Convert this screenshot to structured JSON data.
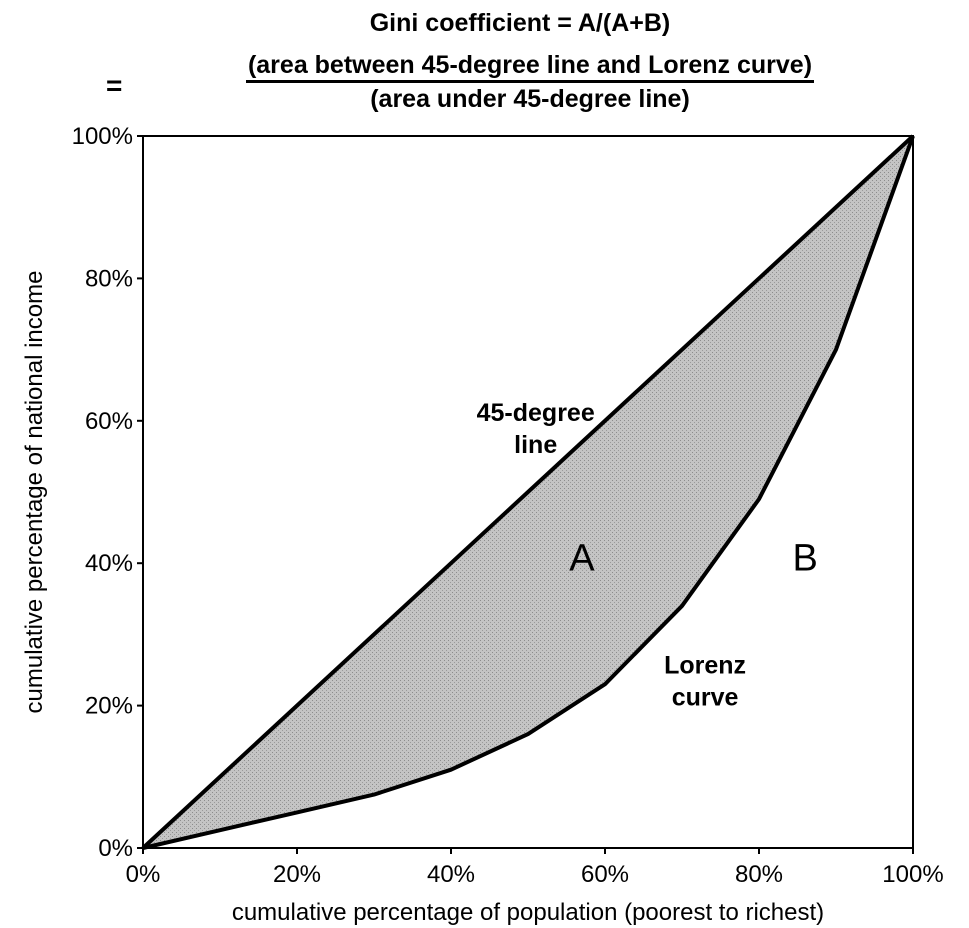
{
  "chart_data": {
    "type": "line",
    "title": "Gini coefficient = A/(A+B)",
    "formula": {
      "equals": "=",
      "numerator": "(area between 45-degree line and Lorenz curve)",
      "denominator": "(area under 45-degree line)"
    },
    "xlabel": "cumulative percentage of population (poorest to richest)",
    "ylabel": "cumulative percentage of national income",
    "xlim": [
      0,
      100
    ],
    "ylim": [
      0,
      100
    ],
    "x_ticks": [
      "0%",
      "20%",
      "40%",
      "60%",
      "80%",
      "100%"
    ],
    "y_ticks": [
      "0%",
      "20%",
      "40%",
      "60%",
      "80%",
      "100%"
    ],
    "grid": false,
    "series": [
      {
        "name": "45-degree line",
        "x": [
          0,
          100
        ],
        "y": [
          0,
          100
        ]
      },
      {
        "name": "Lorenz curve",
        "x": [
          0,
          10,
          20,
          30,
          40,
          50,
          60,
          70,
          80,
          90,
          100
        ],
        "y": [
          0,
          2.5,
          5,
          7.5,
          11,
          16,
          23,
          34,
          49,
          70,
          100
        ]
      }
    ],
    "annotations": [
      {
        "text": "45-degree",
        "x": 51,
        "y": 60
      },
      {
        "text": "line",
        "x": 51,
        "y": 55.5
      },
      {
        "text": "A",
        "x": 57,
        "y": 39
      },
      {
        "text": "B",
        "x": 86,
        "y": 39
      },
      {
        "text": "Lorenz",
        "x": 73,
        "y": 24.5
      },
      {
        "text": "curve",
        "x": 73,
        "y": 20
      }
    ],
    "colors": {
      "fill": "#c4c4c4",
      "line": "#000000"
    }
  }
}
